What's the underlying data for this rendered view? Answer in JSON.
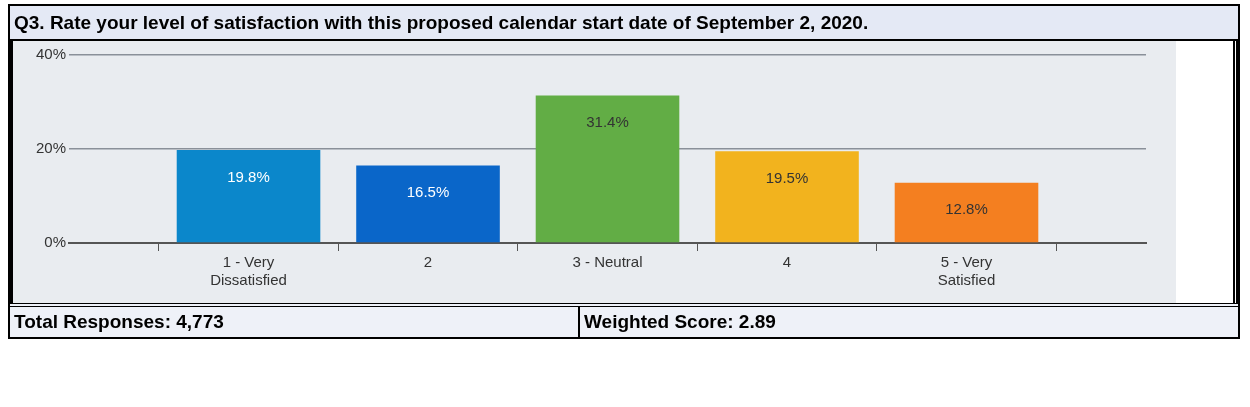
{
  "chart_data": {
    "type": "bar",
    "title": "Q3. Rate your level of satisfaction with this proposed calendar start date of September 2, 2020.",
    "categories": [
      "1 - Very Dissatisfied",
      "2",
      "3 - Neutral",
      "4",
      "5 - Very Satisfied"
    ],
    "values": [
      19.8,
      16.5,
      31.4,
      19.5,
      12.8
    ],
    "colors": [
      "#0b87cb",
      "#0a66c9",
      "#62ad45",
      "#f2b31e",
      "#f47f20"
    ],
    "value_labels": [
      "19.8%",
      "16.5%",
      "31.4%",
      "19.5%",
      "12.8%"
    ],
    "ylim": [
      0,
      40
    ],
    "yticks": [
      {
        "value": 0,
        "label": "0%"
      },
      {
        "value": 20,
        "label": "20%"
      },
      {
        "value": 40,
        "label": "40%"
      }
    ],
    "grid": "y",
    "legend": false,
    "annotations": [
      "Total Responses: 4,773",
      "Weighted Score: 2.89"
    ]
  }
}
